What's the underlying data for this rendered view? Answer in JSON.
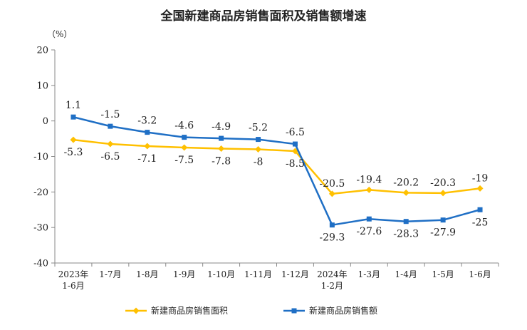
{
  "chart_data": {
    "type": "line",
    "title": "全国新建商品房销售面积及销售额增速",
    "unit": "（%）",
    "categories": [
      [
        "2023年",
        "1-6月"
      ],
      [
        "1-7月"
      ],
      [
        "1-8月"
      ],
      [
        "1-9月"
      ],
      [
        "1-10月"
      ],
      [
        "1-11月"
      ],
      [
        "1-12月"
      ],
      [
        "2024年",
        "1-2月"
      ],
      [
        "1-3月"
      ],
      [
        "1-4月"
      ],
      [
        "1-5月"
      ],
      [
        "1-6月"
      ]
    ],
    "ylim": [
      -40,
      20
    ],
    "yticks": [
      20,
      10,
      0,
      -10,
      -20,
      -30,
      -40
    ],
    "grid": false,
    "legend_position": "bottom",
    "series": [
      {
        "name": "新建商品房销售面积",
        "color": "#FFC000",
        "values": [
          -5.3,
          -6.5,
          -7.1,
          -7.5,
          -7.8,
          -8.0,
          -8.5,
          -20.5,
          -19.4,
          -20.2,
          -20.3,
          -19.0
        ]
      },
      {
        "name": "新建商品房销售额",
        "color": "#1F6FC5",
        "values": [
          1.1,
          -1.5,
          -3.2,
          -4.6,
          -4.9,
          -5.2,
          -6.5,
          -29.3,
          -27.6,
          -28.3,
          -27.9,
          -25.0
        ]
      }
    ]
  }
}
